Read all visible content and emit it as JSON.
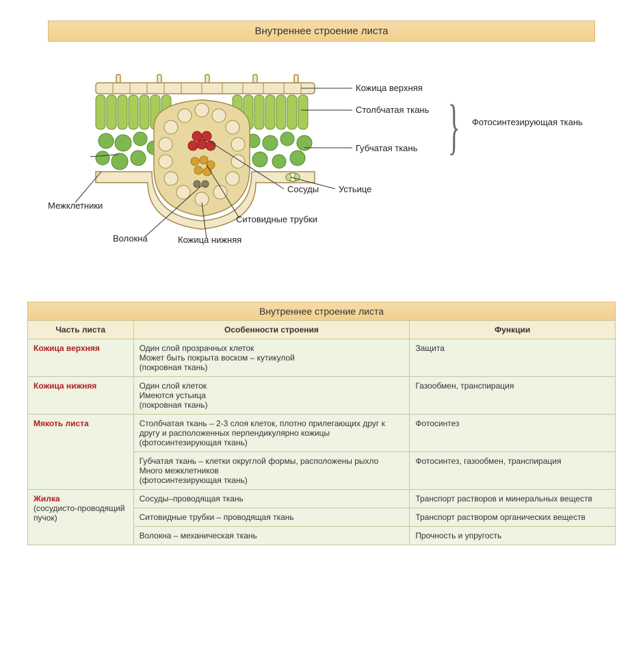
{
  "title_banner": "Внутреннее строение листа",
  "diagram": {
    "labels": {
      "upper_skin": "Кожица верхняя",
      "palisade": "Столбчатая ткань",
      "spongy": "Губчатая ткань",
      "stomata": "Устьице",
      "vessels": "Сосуды",
      "sieve": "Ситовидные трубки",
      "lower_skin": "Кожица нижняя",
      "fibers": "Волокна",
      "intercellular": "Межклетники",
      "photosynth": "Фотосинтезирующая ткань"
    },
    "colors": {
      "cell_outline": "#a68a4a",
      "epidermis_fill": "#f2e8c8",
      "palisade_fill": "#a8cc5a",
      "palisade_stroke": "#6b9030",
      "spongy_fill": "#7fb850",
      "spongy_dark": "#4f8a30",
      "bundle_sheath": "#e8d8a0",
      "xylem": "#c03030",
      "phloem": "#d8a030",
      "fiber": "#888060"
    }
  },
  "table": {
    "title": "Внутреннее строение листа",
    "columns": [
      "Часть листа",
      "Особенности строения",
      "Функции"
    ],
    "rows": [
      {
        "part": "Кожица верхняя",
        "sub": "",
        "features": "Один слой прозрачных клеток\nМожет быть покрыта воском – кутикулой\n(покровная ткань)",
        "function": "Защита"
      },
      {
        "part": "Кожица нижняя",
        "sub": "",
        "features": "Один слой клеток\nИмеются устьица\n(покровная ткань)",
        "function": "Газообмен, транспирация"
      },
      {
        "part": "Мякоть листа",
        "sub": "",
        "features": "Столбчатая ткань – 2-3 слоя клеток, плотно прилегающих друг к другу и расположенных перпендикулярно кожицы\n(фотосинтезирующая ткань)",
        "function": "Фотосинтез"
      },
      {
        "part": "",
        "sub": "",
        "features": "Губчатая ткань – клетки округлой формы, расположены рыхло\nМного межклетников\n(фотосинтезирующая ткань)",
        "function": "Фотосинтез, газообмен, транспирация"
      },
      {
        "part": "Жилка",
        "sub": "(сосудисто-проводящий пучок)",
        "features": "Сосуды–проводящая ткань",
        "function": "Транспорт растворов и минеральных веществ"
      },
      {
        "part": "",
        "sub": "",
        "features": "Ситовидные трубки – проводящая ткань",
        "function": "Транспорт раствором органических веществ"
      },
      {
        "part": "",
        "sub": "",
        "features": "Волокна – механическая ткань",
        "function": "Прочность и упругость"
      }
    ],
    "header_bg": "#f6edd2",
    "cell_bg": "#eef3e2",
    "border_color": "#c6c6a0"
  }
}
